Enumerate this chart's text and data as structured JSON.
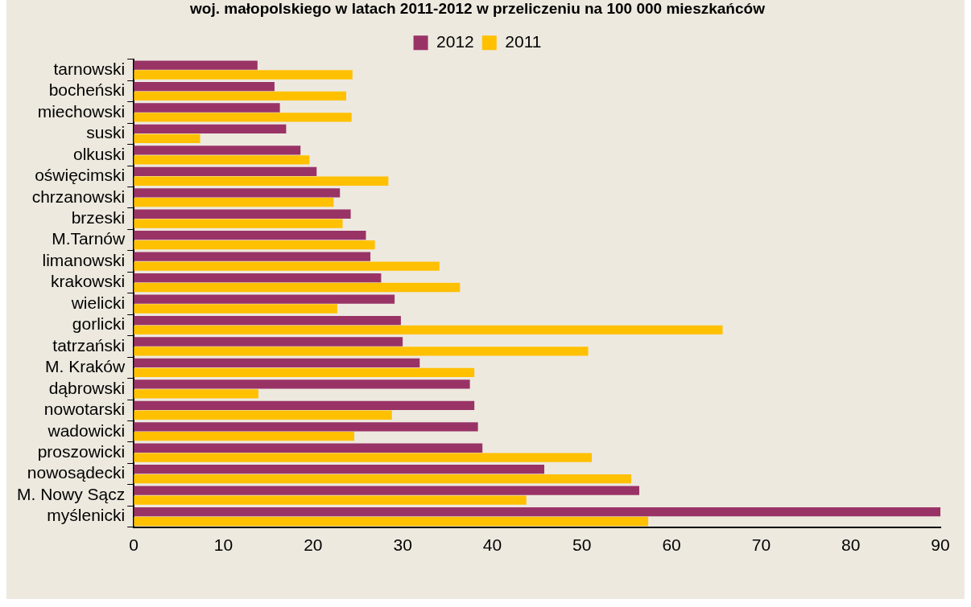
{
  "chart_data": {
    "type": "bar",
    "orientation": "horizontal",
    "title": "woj. małopolskiego w latach 2011-2012 w przeliczeniu na 100 000 mieszkańców",
    "categories": [
      "tarnowski",
      "bocheński",
      "miechowski",
      "suski",
      "olkuski",
      "oświęcimski",
      "chrzanowski",
      "brzeski",
      "M.Tarnów",
      "limanowski",
      "krakowski",
      "wielicki",
      "gorlicki",
      "tatrzański",
      "M. Kraków",
      "dąbrowski",
      "nowotarski",
      "wadowicki",
      "proszowicki",
      "nowosądecki",
      "M. Nowy Sącz",
      "myślenicki"
    ],
    "series": [
      {
        "name": "2012",
        "color": "#993366",
        "values": [
          13.8,
          15.7,
          16.3,
          17,
          18.6,
          20.4,
          23,
          24.2,
          25.9,
          26.4,
          27.6,
          29.1,
          29.8,
          30,
          31.9,
          37.5,
          38,
          38.4,
          38.9,
          45.8,
          56.4,
          90
        ]
      },
      {
        "name": "2011",
        "color": "#ffc000",
        "values": [
          24.4,
          23.7,
          24.3,
          7.4,
          19.6,
          28.4,
          22.3,
          23.3,
          26.9,
          34.1,
          36.4,
          22.7,
          65.7,
          50.7,
          38,
          13.9,
          28.8,
          24.6,
          51.1,
          55.5,
          43.8,
          57.4
        ]
      }
    ],
    "xlim": [
      0,
      90
    ],
    "xticks": [
      0,
      10,
      20,
      30,
      40,
      50,
      60,
      70,
      80,
      90
    ],
    "grid": false,
    "legend": "top"
  }
}
